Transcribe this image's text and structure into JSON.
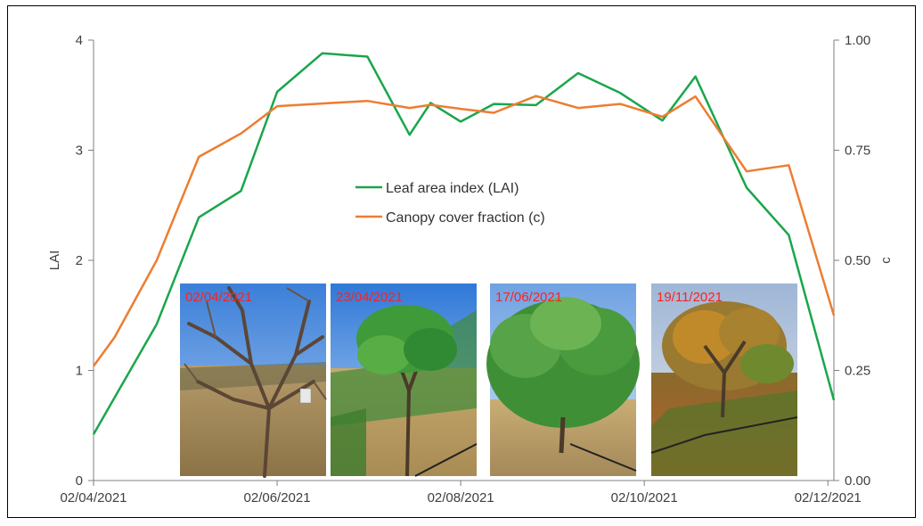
{
  "chart_data": {
    "type": "line",
    "title": "",
    "xlabel": "",
    "ylabel": "LAI",
    "y2label": "c",
    "x_tick_labels": [
      "02/04/2021",
      "02/06/2021",
      "02/08/2021",
      "02/10/2021",
      "02/12/2021"
    ],
    "x_range": [
      "2021-04-02",
      "2021-12-04"
    ],
    "ylim": [
      0,
      4
    ],
    "y_ticks": [
      "0",
      "1",
      "2",
      "3",
      "4"
    ],
    "y2lim": [
      0,
      1
    ],
    "y2_ticks": [
      "0.00",
      "0.25",
      "0.50",
      "0.75",
      "1.00"
    ],
    "legend_position": "center",
    "series": [
      {
        "name": "Leaf area index (LAI)",
        "axis": "left",
        "color": "#1aa64b",
        "points": [
          [
            "2021-04-02",
            0.42
          ],
          [
            "2021-04-23",
            1.42
          ],
          [
            "2021-05-07",
            2.39
          ],
          [
            "2021-05-21",
            2.63
          ],
          [
            "2021-06-02",
            3.53
          ],
          [
            "2021-06-17",
            3.88
          ],
          [
            "2021-07-02",
            3.85
          ],
          [
            "2021-07-16",
            3.14
          ],
          [
            "2021-07-23",
            3.43
          ],
          [
            "2021-08-02",
            3.26
          ],
          [
            "2021-08-13",
            3.42
          ],
          [
            "2021-08-27",
            3.41
          ],
          [
            "2021-09-10",
            3.7
          ],
          [
            "2021-09-24",
            3.52
          ],
          [
            "2021-10-08",
            3.27
          ],
          [
            "2021-10-19",
            3.67
          ],
          [
            "2021-11-05",
            2.66
          ],
          [
            "2021-11-19",
            2.23
          ],
          [
            "2021-12-04",
            0.73
          ]
        ]
      },
      {
        "name": "Canopy cover fraction (c)",
        "axis": "right",
        "color": "#ed7d31",
        "points": [
          [
            "2021-04-02",
            0.26
          ],
          [
            "2021-04-09",
            0.325
          ],
          [
            "2021-04-23",
            0.5
          ],
          [
            "2021-05-07",
            0.735
          ],
          [
            "2021-05-21",
            0.788
          ],
          [
            "2021-06-02",
            0.85
          ],
          [
            "2021-06-17",
            0.856
          ],
          [
            "2021-07-02",
            0.862
          ],
          [
            "2021-07-16",
            0.846
          ],
          [
            "2021-07-23",
            0.853
          ],
          [
            "2021-08-02",
            0.844
          ],
          [
            "2021-08-13",
            0.835
          ],
          [
            "2021-08-27",
            0.873
          ],
          [
            "2021-09-10",
            0.846
          ],
          [
            "2021-09-24",
            0.855
          ],
          [
            "2021-10-08",
            0.826
          ],
          [
            "2021-10-19",
            0.872
          ],
          [
            "2021-11-05",
            0.702
          ],
          [
            "2021-11-19",
            0.716
          ],
          [
            "2021-12-04",
            0.375
          ]
        ]
      }
    ],
    "photos": [
      {
        "date": "02/04/2021",
        "scene": "bare-branches"
      },
      {
        "date": "23/04/2021",
        "scene": "young-leaves"
      },
      {
        "date": "17/06/2021",
        "scene": "full-canopy"
      },
      {
        "date": "19/11/2021",
        "scene": "autumn-leaves"
      }
    ]
  }
}
